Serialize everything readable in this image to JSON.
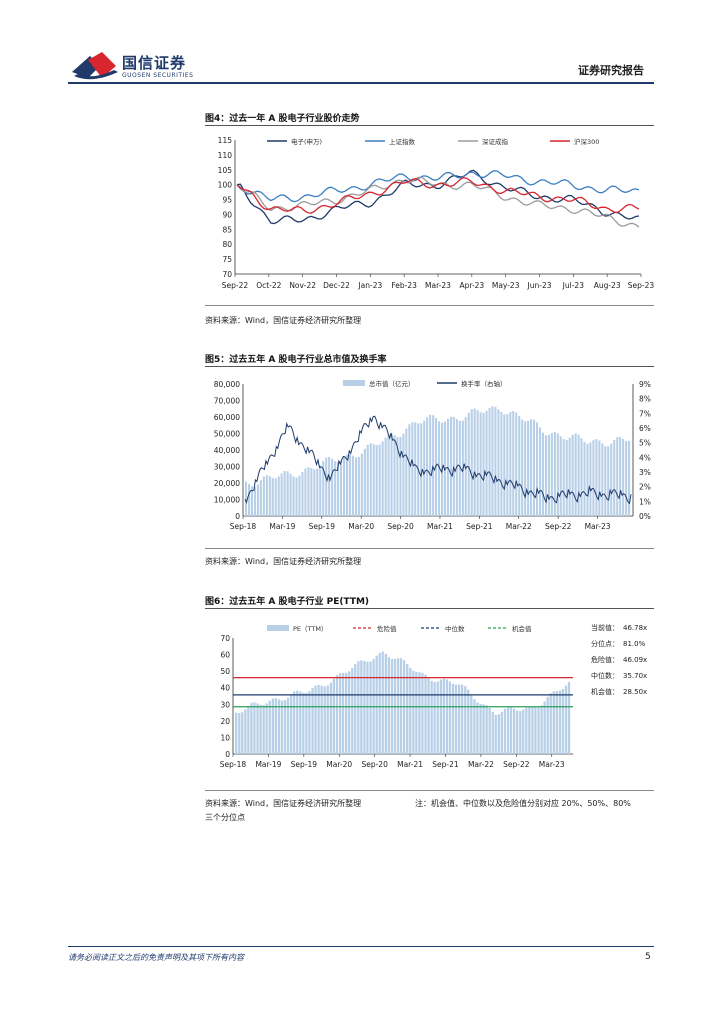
{
  "header": {
    "logo_cn": "国信证券",
    "logo_en": "GUOSEN SECURITIES",
    "report_type": "证券研究报告"
  },
  "figures": [
    {
      "title": "图4：过去一年 A 股电子行业股价走势",
      "source": "资料来源：Wind，国信证券经济研究所整理"
    },
    {
      "title": "图5：过去五年 A 股电子行业总市值及换手率",
      "source": "资料来源：Wind，国信证券经济研究所整理"
    },
    {
      "title": "图6：过去五年 A 股电子行业 PE(TTM)",
      "source": "资料来源：Wind，国信证券经济研究所整理",
      "note": "注：机会值、中位数以及危险值分别对应 20%、50%、80%",
      "note2": "三个分位点"
    }
  ],
  "footer": {
    "disclaimer": "请务必阅读正文之后的免责声明及其项下所有内容",
    "page": "5"
  },
  "colors": {
    "brand": "#1f3a6b",
    "logo_red": "#d7262f"
  },
  "chart_data": [
    {
      "type": "line",
      "xlabel": "",
      "ylabel": "",
      "ylim": [
        70,
        115
      ],
      "yticks": [
        "115",
        "110",
        "105",
        "100",
        "95",
        "90",
        "85",
        "80",
        "75",
        "70"
      ],
      "categories": [
        "Sep-22",
        "Oct-22",
        "Nov-22",
        "Dec-22",
        "Jan-23",
        "Feb-23",
        "Mar-23",
        "Apr-23",
        "May-23",
        "Jun-23",
        "Jul-23",
        "Aug-23",
        "Sep-23"
      ],
      "legend": "top",
      "series": [
        {
          "name": "电子(申万)",
          "color": "#1f3a6b",
          "values": [
            100,
            88,
            88,
            92,
            94,
            100,
            100,
            104,
            99,
            96,
            95,
            91,
            88
          ]
        },
        {
          "name": "上证指数",
          "color": "#3c7fc1",
          "values": [
            100,
            95,
            96,
            98,
            100,
            103,
            102,
            104,
            103,
            101,
            100,
            98,
            98
          ]
        },
        {
          "name": "深证成指",
          "color": "#9b9b9b",
          "values": [
            100,
            92,
            93,
            95,
            98,
            102,
            100,
            100,
            96,
            93,
            92,
            89,
            86
          ]
        },
        {
          "name": "沪深300",
          "color": "#d7262f",
          "values": [
            100,
            92,
            91,
            94,
            97,
            101,
            100,
            101,
            98,
            96,
            95,
            92,
            92
          ]
        }
      ]
    },
    {
      "type": "bar",
      "xlabel": "",
      "ylabel": "",
      "ylim": [
        0,
        80000
      ],
      "y2lim": [
        0,
        9
      ],
      "yticks": [
        "80,000",
        "70,000",
        "60,000",
        "50,000",
        "40,000",
        "30,000",
        "20,000",
        "10,000",
        "0"
      ],
      "y2ticks": [
        "9%",
        "8%",
        "7%",
        "6%",
        "5%",
        "4%",
        "3%",
        "2%",
        "1%",
        "0%"
      ],
      "categories": [
        "Sep-18",
        "Mar-19",
        "Sep-19",
        "Mar-20",
        "Sep-20",
        "Mar-21",
        "Sep-21",
        "Mar-22",
        "Sep-22",
        "Mar-23"
      ],
      "legend": "top",
      "series": [
        {
          "name": "总市值（亿元）",
          "color": "#b8cfe8",
          "values": [
            20000,
            25000,
            33000,
            42000,
            57000,
            60000,
            66000,
            52000,
            45000,
            46000
          ]
        },
        {
          "name": "换手率（右轴）",
          "color": "#1f3a6b",
          "axis": "right",
          "values": [
            1.0,
            6.0,
            2.5,
            6.8,
            3.0,
            3.2,
            2.3,
            1.2,
            1.5,
            1.3
          ]
        }
      ]
    },
    {
      "type": "bar",
      "xlabel": "",
      "ylabel": "",
      "ylim": [
        0,
        70
      ],
      "yticks": [
        "70",
        "60",
        "50",
        "40",
        "30",
        "20",
        "10",
        "0"
      ],
      "categories": [
        "Sep-18",
        "Mar-19",
        "Sep-19",
        "Mar-20",
        "Sep-20",
        "Mar-21",
        "Sep-21",
        "Mar-22",
        "Sep-22",
        "Mar-23"
      ],
      "legend": "top",
      "series": [
        {
          "name": "PE（TTM）",
          "color": "#b8cfe8",
          "values": [
            25,
            33,
            38,
            50,
            62,
            48,
            42,
            25,
            28,
            42
          ]
        },
        {
          "name": "危险值",
          "color": "#d7262f",
          "value": 46.09
        },
        {
          "name": "中位数",
          "color": "#1f3a6b",
          "value": 35.7
        },
        {
          "name": "机会值",
          "color": "#2aa05a",
          "value": 28.5
        }
      ],
      "stats": [
        {
          "label": "当前值：",
          "value": "46.78x"
        },
        {
          "label": "分位点：",
          "value": "81.0%"
        },
        {
          "label": "危险值：",
          "value": "46.09x"
        },
        {
          "label": "中位数：",
          "value": "35.70x"
        },
        {
          "label": "机会值：",
          "value": "28.50x"
        }
      ]
    }
  ]
}
